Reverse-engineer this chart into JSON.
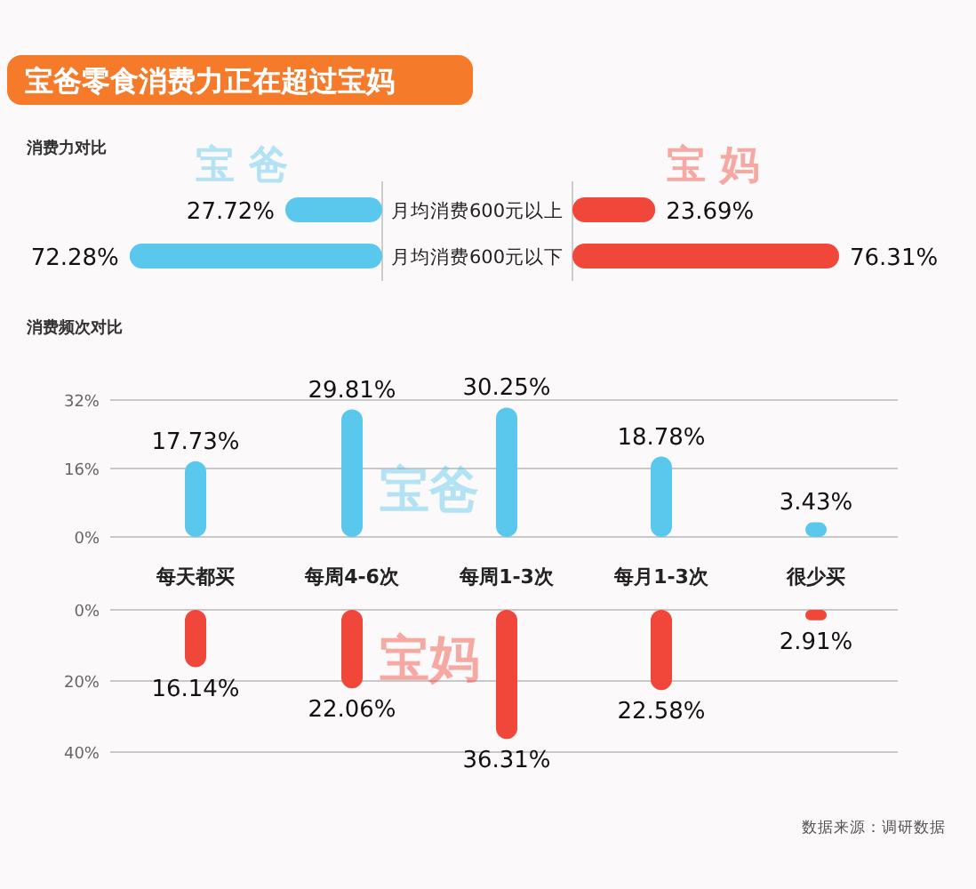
{
  "chart_data": [
    {
      "type": "bar",
      "orientation": "horizontal",
      "title": "宝爸零食消费力正在超过宝妈",
      "subtitle": "消费力对比",
      "categories": [
        "月均消费600元以上",
        "月均消费600元以下"
      ],
      "series": [
        {
          "name": "宝爸",
          "color": "#5ac8ec",
          "values": [
            27.72,
            72.28
          ],
          "value_labels": [
            "27.72%",
            "72.28%"
          ]
        }
      ]
    },
    {
      "type": "bar",
      "orientation": "horizontal",
      "categories": [
        null,
        null
      ],
      "series": [
        {
          "name": "宝妈",
          "color": "#f0473a",
          "values": [
            23.69,
            76.31
          ],
          "value_labels": [
            "23.69%",
            "76.31%"
          ]
        }
      ]
    },
    {
      "type": "bar",
      "title": "消费频次对比",
      "categories": [
        "每天都买",
        "每周4-6次",
        "每周1-3次",
        "每月1-3次",
        "很少买"
      ],
      "ylim": [
        0,
        32
      ],
      "yticks": [
        {
          "value": 0,
          "label": "0%"
        },
        {
          "value": 16,
          "label": "16%"
        },
        {
          "value": 32,
          "label": "32%"
        }
      ],
      "grid": "y",
      "series": [
        {
          "name": "宝爸",
          "color": "#5ac8ec",
          "values": [
            17.73,
            29.81,
            30.25,
            18.78,
            3.43
          ],
          "value_labels": [
            "17.73%",
            "29.81%",
            "30.25%",
            "18.78%",
            "3.43%"
          ]
        }
      ]
    },
    {
      "type": "bar",
      "categories": [
        null,
        null,
        null,
        null,
        null
      ],
      "tick_labels": "y",
      "ylim": [
        40,
        0
      ],
      "yticks": [
        {
          "value": 0,
          "label": "0%"
        },
        {
          "value": 20,
          "label": "20%"
        },
        {
          "value": 40,
          "label": "40%"
        }
      ],
      "grid": "y",
      "annotations": [
        "数据来源：调研数据"
      ],
      "series": [
        {
          "name": "宝妈",
          "color": "#f0473a",
          "values": [
            16.14,
            22.06,
            36.31,
            22.58,
            2.91
          ],
          "value_labels": [
            "16.14%",
            "22.06%",
            "36.31%",
            "22.58%",
            "2.91%"
          ]
        }
      ]
    }
  ]
}
